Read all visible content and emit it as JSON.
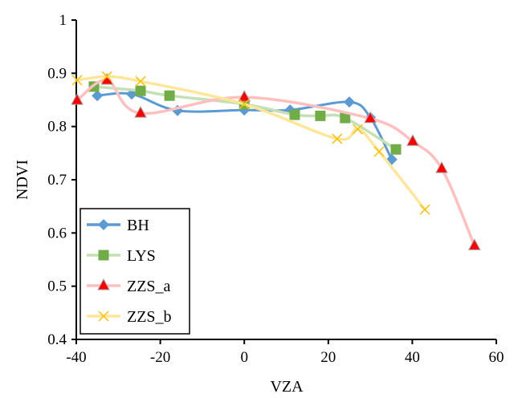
{
  "chart_data": {
    "type": "line",
    "xlabel": "VZA",
    "ylabel": "NDVI",
    "xlim": [
      -40,
      60
    ],
    "ylim": [
      0.4,
      1
    ],
    "xticks": [
      -40,
      -20,
      0,
      20,
      40,
      60
    ],
    "yticks": [
      0.4,
      0.5,
      0.6,
      0.7,
      0.8,
      0.9,
      1
    ],
    "ytick_labels": [
      "0.4",
      "0.5",
      "0.6",
      "0.7",
      "0.8",
      "0.9",
      "1"
    ],
    "grid": false,
    "legend_position": "bottom-left",
    "smoothed": true,
    "series": [
      {
        "name": "BH",
        "marker": "diamond",
        "color": "#5b9bd5",
        "line_color": "#5b9bd5",
        "x": [
          -35,
          -26.8,
          -15.9,
          0,
          10.9,
          25,
          30,
          35.1
        ],
        "y": [
          0.858,
          0.861,
          0.83,
          0.831,
          0.831,
          0.846,
          0.817,
          0.738
        ]
      },
      {
        "name": "LYS",
        "marker": "square",
        "color": "#70ad47",
        "line_color": "#c5e0b4",
        "x": [
          -35.8,
          -24.7,
          -17.8,
          0,
          12,
          18.1,
          24,
          36.1
        ],
        "y": [
          0.875,
          0.867,
          0.858,
          0.842,
          0.822,
          0.82,
          0.816,
          0.757
        ]
      },
      {
        "name": "ZZS_a",
        "marker": "triangle",
        "color": "#ff0000",
        "line_color": "#ffbfbf",
        "x": [
          -39.8,
          -32.7,
          -24.7,
          0,
          30,
          40.1,
          47,
          54.8
        ],
        "y": [
          0.849,
          0.887,
          0.825,
          0.855,
          0.815,
          0.772,
          0.721,
          0.576
        ]
      },
      {
        "name": "ZZS_b",
        "marker": "x",
        "color": "#ffc000",
        "line_color": "#ffe699",
        "x": [
          -39.8,
          -32.7,
          -24.7,
          0,
          22.1,
          27,
          32.1,
          43
        ],
        "y": [
          0.887,
          0.894,
          0.885,
          0.842,
          0.777,
          0.795,
          0.753,
          0.644
        ]
      }
    ]
  }
}
